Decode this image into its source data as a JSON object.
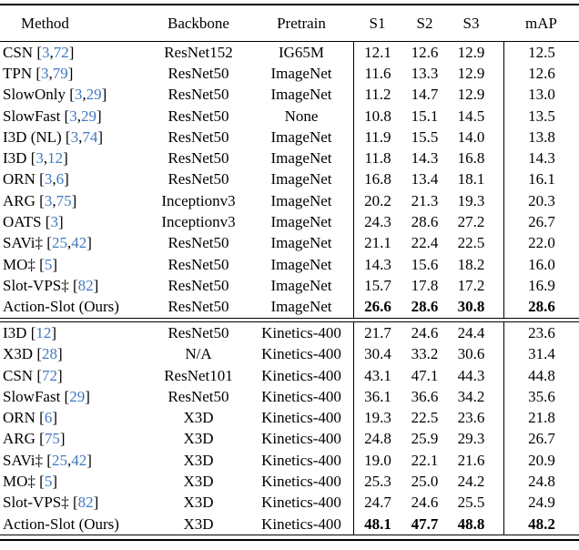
{
  "table": {
    "header": {
      "method": "Method",
      "backbone": "Backbone",
      "pretrain": "Pretrain",
      "s1": "S1",
      "s2": "S2",
      "s3": "S3",
      "map": "mAP"
    },
    "colors": {
      "citation_blue": "#4178be",
      "text": "#000000",
      "rule": "#000000",
      "background": "#ffffff"
    },
    "sections": [
      {
        "name": "imagenet-pretrain-section",
        "rows": [
          {
            "method": "CSN",
            "refs": [
              "3",
              "72"
            ],
            "backbone": "ResNet152",
            "pretrain": "IG65M",
            "s1": "12.1",
            "s2": "12.6",
            "s3": "12.9",
            "map": "12.5",
            "bold": false
          },
          {
            "method": "TPN",
            "refs": [
              "3",
              "79"
            ],
            "backbone": "ResNet50",
            "pretrain": "ImageNet",
            "s1": "11.6",
            "s2": "13.3",
            "s3": "12.9",
            "map": "12.6",
            "bold": false
          },
          {
            "method": "SlowOnly",
            "refs": [
              "3",
              "29"
            ],
            "backbone": "ResNet50",
            "pretrain": "ImageNet",
            "s1": "11.2",
            "s2": "14.7",
            "s3": "12.9",
            "map": "13.0",
            "bold": false
          },
          {
            "method": "SlowFast",
            "refs": [
              "3",
              "29"
            ],
            "backbone": "ResNet50",
            "pretrain": "None",
            "s1": "10.8",
            "s2": "15.1",
            "s3": "14.5",
            "map": "13.5",
            "bold": false
          },
          {
            "method": "I3D (NL)",
            "refs": [
              "3",
              "74"
            ],
            "backbone": "ResNet50",
            "pretrain": "ImageNet",
            "s1": "11.9",
            "s2": "15.5",
            "s3": "14.0",
            "map": "13.8",
            "bold": false
          },
          {
            "method": "I3D",
            "refs": [
              "3",
              "12"
            ],
            "backbone": "ResNet50",
            "pretrain": "ImageNet",
            "s1": "11.8",
            "s2": "14.3",
            "s3": "16.8",
            "map": "14.3",
            "bold": false
          },
          {
            "method": "ORN",
            "refs": [
              "3",
              "6"
            ],
            "backbone": "ResNet50",
            "pretrain": "ImageNet",
            "s1": "16.8",
            "s2": "13.4",
            "s3": "18.1",
            "map": "16.1",
            "bold": false
          },
          {
            "method": "ARG",
            "refs": [
              "3",
              "75"
            ],
            "backbone": "Inceptionv3",
            "pretrain": "ImageNet",
            "s1": "20.2",
            "s2": "21.3",
            "s3": "19.3",
            "map": "20.3",
            "bold": false
          },
          {
            "method": "OATS",
            "refs": [
              "3"
            ],
            "backbone": "Inceptionv3",
            "pretrain": "ImageNet",
            "s1": "24.3",
            "s2": "28.6",
            "s3": "27.2",
            "map": "26.7",
            "bold": false
          },
          {
            "method": "SAVi‡",
            "refs": [
              "25",
              "42"
            ],
            "backbone": "ResNet50",
            "pretrain": "ImageNet",
            "s1": "21.1",
            "s2": "22.4",
            "s3": "22.5",
            "map": "22.0",
            "bold": false
          },
          {
            "method": "MO‡",
            "refs": [
              "5"
            ],
            "backbone": "ResNet50",
            "pretrain": "ImageNet",
            "s1": "14.3",
            "s2": "15.6",
            "s3": "18.2",
            "map": "16.0",
            "bold": false
          },
          {
            "method": "Slot-VPS‡",
            "refs": [
              "82"
            ],
            "backbone": "ResNet50",
            "pretrain": "ImageNet",
            "s1": "15.7",
            "s2": "17.8",
            "s3": "17.2",
            "map": "16.9",
            "bold": false
          },
          {
            "method": "Action-Slot (Ours)",
            "refs": [],
            "backbone": "ResNet50",
            "pretrain": "ImageNet",
            "s1": "26.6",
            "s2": "28.6",
            "s3": "30.8",
            "map": "28.6",
            "bold": true
          }
        ]
      },
      {
        "name": "kinetics-pretrain-section",
        "rows": [
          {
            "method": "I3D",
            "refs": [
              "12"
            ],
            "backbone": "ResNet50",
            "pretrain": "Kinetics-400",
            "s1": "21.7",
            "s2": "24.6",
            "s3": "24.4",
            "map": "23.6",
            "bold": false
          },
          {
            "method": "X3D",
            "refs": [
              "28"
            ],
            "backbone": "N/A",
            "pretrain": "Kinetics-400",
            "s1": "30.4",
            "s2": "33.2",
            "s3": "30.6",
            "map": "31.4",
            "bold": false
          },
          {
            "method": "CSN",
            "refs": [
              "72"
            ],
            "backbone": "ResNet101",
            "pretrain": "Kinetics-400",
            "s1": "43.1",
            "s2": "47.1",
            "s3": "44.3",
            "map": "44.8",
            "bold": false
          },
          {
            "method": "SlowFast",
            "refs": [
              "29"
            ],
            "backbone": "ResNet50",
            "pretrain": "Kinetics-400",
            "s1": "36.1",
            "s2": "36.6",
            "s3": "34.2",
            "map": "35.6",
            "bold": false
          },
          {
            "method": "ORN",
            "refs": [
              "6"
            ],
            "backbone": "X3D",
            "pretrain": "Kinetics-400",
            "s1": "19.3",
            "s2": "22.5",
            "s3": "23.6",
            "map": "21.8",
            "bold": false
          },
          {
            "method": "ARG",
            "refs": [
              "75"
            ],
            "backbone": "X3D",
            "pretrain": "Kinetics-400",
            "s1": "24.8",
            "s2": "25.9",
            "s3": "29.3",
            "map": "26.7",
            "bold": false
          },
          {
            "method": "SAVi‡",
            "refs": [
              "25",
              "42"
            ],
            "backbone": "X3D",
            "pretrain": "Kinetics-400",
            "s1": "19.0",
            "s2": "22.1",
            "s3": "21.6",
            "map": "20.9",
            "bold": false
          },
          {
            "method": "MO‡",
            "refs": [
              "5"
            ],
            "backbone": "X3D",
            "pretrain": "Kinetics-400",
            "s1": "25.3",
            "s2": "25.0",
            "s3": "24.2",
            "map": "24.8",
            "bold": false
          },
          {
            "method": "Slot-VPS‡",
            "refs": [
              "82"
            ],
            "backbone": "X3D",
            "pretrain": "Kinetics-400",
            "s1": "24.7",
            "s2": "24.6",
            "s3": "25.5",
            "map": "24.9",
            "bold": false
          },
          {
            "method": "Action-Slot (Ours)",
            "refs": [],
            "backbone": "X3D",
            "pretrain": "Kinetics-400",
            "s1": "48.1",
            "s2": "47.7",
            "s3": "48.8",
            "map": "48.2",
            "bold": true
          }
        ]
      }
    ]
  }
}
